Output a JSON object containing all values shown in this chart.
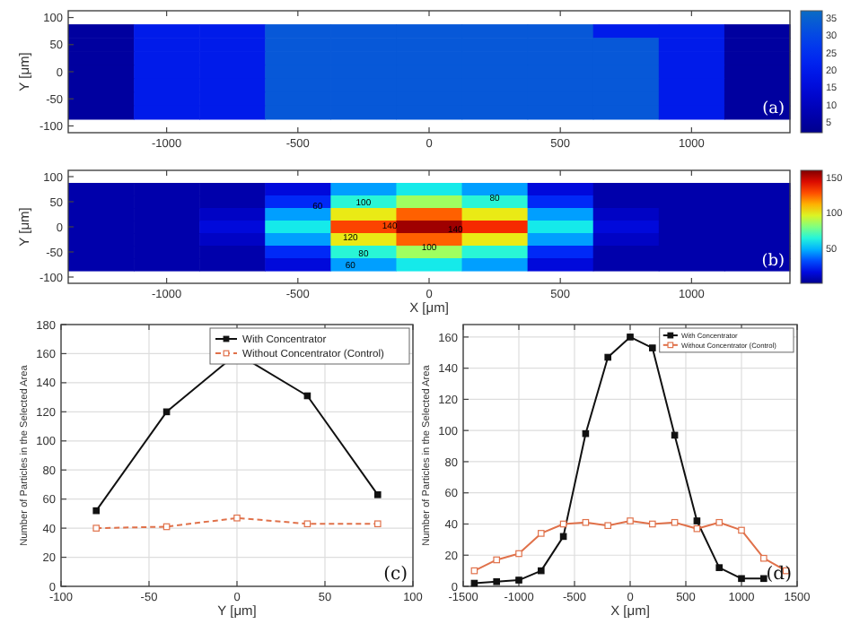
{
  "chart_data": [
    {
      "type": "heatmap",
      "ylabel": "Y [μm]",
      "categories": [
        null,
        "-1000",
        null,
        "-500",
        null,
        "0",
        null,
        "500",
        null,
        "1000",
        null
      ],
      "y_categories": [
        "100",
        null,
        "50",
        null,
        "0",
        null,
        "-50",
        null,
        "-100"
      ],
      "cells": [
        [
          null,
          null,
          null,
          null,
          null,
          null,
          null,
          null,
          null,
          null,
          null
        ],
        [
          5,
          20,
          20,
          33,
          33,
          33,
          33,
          33,
          20,
          20,
          5
        ],
        [
          5,
          20,
          20,
          33,
          33,
          33,
          33,
          33,
          33,
          20,
          5
        ],
        [
          5,
          20,
          20,
          33,
          33,
          33,
          33,
          33,
          33,
          20,
          5
        ],
        [
          5,
          20,
          20,
          33,
          33,
          33,
          33,
          33,
          33,
          20,
          5
        ],
        [
          5,
          20,
          20,
          33,
          33,
          33,
          33,
          33,
          33,
          20,
          5
        ],
        [
          5,
          20,
          20,
          33,
          33,
          33,
          33,
          33,
          33,
          20,
          5
        ],
        [
          5,
          20,
          20,
          33,
          33,
          33,
          33,
          33,
          33,
          20,
          5
        ],
        [
          null,
          null,
          null,
          null,
          null,
          null,
          null,
          null,
          null,
          null,
          null
        ]
      ],
      "clim": [
        2,
        37
      ],
      "cticks": [
        5,
        10,
        15,
        20,
        25,
        30,
        35
      ],
      "annotations": [
        "(a)"
      ]
    },
    {
      "type": "heatmap",
      "xlabel": "X [μm]",
      "ylabel": "Y [μm]",
      "categories": [
        null,
        "-1000",
        null,
        "-500",
        null,
        "0",
        null,
        "500",
        null,
        "1000",
        null
      ],
      "y_categories": [
        "100",
        null,
        "50",
        null,
        "0",
        null,
        "-50",
        null,
        "-100"
      ],
      "cells": [
        [
          null,
          null,
          null,
          null,
          null,
          null,
          null,
          null,
          null,
          null,
          null
        ],
        [
          5,
          5,
          5,
          15,
          45,
          60,
          45,
          15,
          5,
          5,
          5
        ],
        [
          5,
          5,
          5,
          25,
          65,
          85,
          65,
          25,
          5,
          5,
          5
        ],
        [
          5,
          5,
          10,
          45,
          100,
          125,
          100,
          45,
          10,
          5,
          5
        ],
        [
          5,
          5,
          15,
          60,
          130,
          155,
          135,
          60,
          15,
          5,
          5
        ],
        [
          5,
          5,
          10,
          45,
          100,
          125,
          100,
          45,
          10,
          5,
          5
        ],
        [
          5,
          5,
          5,
          25,
          65,
          85,
          65,
          25,
          5,
          5,
          5
        ],
        [
          5,
          5,
          5,
          15,
          45,
          60,
          45,
          15,
          5,
          5,
          5
        ],
        [
          null,
          null,
          null,
          null,
          null,
          null,
          null,
          null,
          null,
          null,
          null
        ]
      ],
      "clim": [
        0,
        160
      ],
      "cticks": [
        50,
        100,
        150
      ],
      "annotations": [
        "(b)",
        "140",
        "140",
        "120",
        "100",
        "100",
        "80",
        "80",
        "60",
        "60"
      ]
    },
    {
      "type": "line",
      "xlabel": "Y [μm]",
      "ylabel": "Number of Particles in the Selected Area",
      "x": [
        -80,
        -40,
        0,
        40,
        80
      ],
      "series": [
        {
          "name": "With Concentrator",
          "color": "#111111",
          "values": [
            52,
            120,
            160,
            131,
            63
          ],
          "line_style": "solid"
        },
        {
          "name": "Without Concentrator (Control)",
          "color": "#e0714a",
          "values": [
            40,
            41,
            47,
            43,
            43
          ],
          "line_style": "dashed"
        }
      ],
      "xlim": [
        -100,
        100
      ],
      "xticks": [
        -100,
        -50,
        0,
        50,
        100
      ],
      "ylim": [
        0,
        180
      ],
      "yticks": [
        0,
        20,
        40,
        60,
        80,
        100,
        120,
        140,
        160,
        180
      ],
      "grid": true,
      "legend": "top right",
      "marker": "square",
      "annotations": [
        "(c)"
      ]
    },
    {
      "type": "line",
      "xlabel": "X [μm]",
      "ylabel": "Number of Particles in the Selected Area",
      "series": [
        {
          "name": "With Concentrator",
          "color": "#111111",
          "x": [
            -1400,
            -1200,
            -1000,
            -800,
            -600,
            -400,
            -200,
            0,
            200,
            400,
            600,
            800,
            1000,
            1200
          ],
          "values": [
            2,
            3,
            4,
            10,
            32,
            98,
            147,
            160,
            153,
            97,
            42,
            12,
            5,
            5
          ],
          "line_style": "solid"
        },
        {
          "name": "Without Concentrator (Control)",
          "color": "#e0714a",
          "x": [
            -1400,
            -1200,
            -1000,
            -800,
            -600,
            -400,
            -200,
            0,
            200,
            400,
            600,
            800,
            1000,
            1200,
            1400
          ],
          "values": [
            10,
            17,
            21,
            34,
            40,
            41,
            39,
            42,
            40,
            41,
            37,
            41,
            36,
            18,
            10
          ],
          "line_style": "solid"
        }
      ],
      "xlim": [
        -1500,
        1500
      ],
      "xticks": [
        -1500,
        -1000,
        -500,
        0,
        500,
        1000,
        1500
      ],
      "ylim": [
        0,
        168
      ],
      "yticks": [
        0,
        20,
        40,
        60,
        80,
        100,
        120,
        140,
        160
      ],
      "grid": true,
      "legend": "top right",
      "marker": "square",
      "annotations": [
        "(d)"
      ]
    }
  ]
}
